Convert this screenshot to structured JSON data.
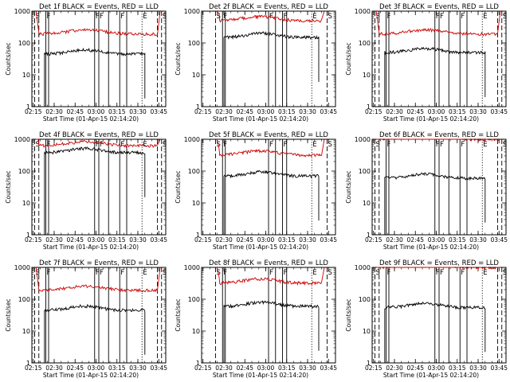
{
  "chart_data": [
    {
      "type": "line",
      "title": "Det 1f BLACK = Events, RED = LLD",
      "xlabel": "Start Time (01-Apr-15 02:14:20)",
      "ylabel": "Counts/sec",
      "x_ticks": [
        "02:15",
        "02:30",
        "02:45",
        "03:00",
        "03:15",
        "03:30",
        "03:45"
      ],
      "y_ticks": [
        "1",
        "10",
        "100",
        "1000"
      ],
      "y_scale": "log",
      "ylim": [
        1,
        1000
      ],
      "markers": [
        {
          "t": "02:16",
          "style": "dash",
          "label": "S"
        },
        {
          "t": "02:19",
          "style": "dash",
          "label": ""
        },
        {
          "t": "02:24",
          "style": "solid",
          "label": "F"
        },
        {
          "t": "02:26",
          "style": "solid",
          "label": ""
        },
        {
          "t": "02:59",
          "style": "solid",
          "label": "F"
        },
        {
          "t": "03:02",
          "style": "solid",
          "label": "F"
        },
        {
          "t": "03:09",
          "style": "solid",
          "label": ""
        },
        {
          "t": "03:17",
          "style": "solid",
          "label": "F"
        },
        {
          "t": "03:22",
          "style": "solid",
          "label": ""
        },
        {
          "t": "03:33",
          "style": "dot",
          "label": "E"
        },
        {
          "t": "03:44",
          "style": "dash",
          "label": ""
        },
        {
          "t": "03:47",
          "style": "dash",
          "label": "S"
        }
      ],
      "series": [
        {
          "name": "Events",
          "color": "#000000",
          "t_start": "02:23",
          "t_end": "03:35",
          "level": 45
        },
        {
          "name": "LLD",
          "color": "#cc0000",
          "t_start": "02:17",
          "t_end": "03:46",
          "level": 190
        }
      ]
    },
    {
      "type": "line",
      "title": "Det 2f BLACK = Events, RED = LLD",
      "xlabel": "Start Time (01-Apr-15 02:14:20)",
      "ylabel": "Counts/sec",
      "x_ticks": [
        "02:15",
        "02:30",
        "02:45",
        "03:00",
        "03:15",
        "03:30",
        "03:45"
      ],
      "y_ticks": [
        "1",
        "10",
        "100",
        "1000"
      ],
      "y_scale": "log",
      "ylim": [
        1,
        1000
      ],
      "markers": [
        {
          "t": "02:24",
          "style": "dash",
          "label": "S"
        },
        {
          "t": "02:29",
          "style": "solid",
          "label": "F"
        },
        {
          "t": "02:31",
          "style": "solid",
          "label": ""
        },
        {
          "t": "03:02",
          "style": "solid",
          "label": "F"
        },
        {
          "t": "03:07",
          "style": "solid",
          "label": ""
        },
        {
          "t": "03:12",
          "style": "solid",
          "label": "F"
        },
        {
          "t": "03:15",
          "style": "solid",
          "label": ""
        },
        {
          "t": "03:33",
          "style": "dot",
          "label": "E"
        },
        {
          "t": "03:44",
          "style": "dash",
          "label": "S"
        }
      ],
      "series": [
        {
          "name": "Events",
          "color": "#000000",
          "t_start": "02:30",
          "t_end": "03:38",
          "level": 150
        },
        {
          "name": "LLD",
          "color": "#cc0000",
          "t_start": "02:25",
          "t_end": "03:42",
          "level": 500
        }
      ]
    },
    {
      "type": "line",
      "title": "Det 3f BLACK = Events, RED = LLD",
      "xlabel": "Start Time (01-Apr-15 02:14:20)",
      "ylabel": "Counts/sec",
      "x_ticks": [
        "02:15",
        "02:30",
        "02:45",
        "03:00",
        "03:15",
        "03:30",
        "03:45"
      ],
      "y_ticks": [
        "1",
        "10",
        "100",
        "1000"
      ],
      "y_scale": "log",
      "ylim": [
        1,
        1000
      ],
      "markers": [
        {
          "t": "02:16",
          "style": "dash",
          "label": "S"
        },
        {
          "t": "02:19",
          "style": "dash",
          "label": ""
        },
        {
          "t": "02:24",
          "style": "solid",
          "label": "F"
        },
        {
          "t": "02:26",
          "style": "solid",
          "label": ""
        },
        {
          "t": "02:59",
          "style": "solid",
          "label": "F"
        },
        {
          "t": "03:02",
          "style": "solid",
          "label": "F"
        },
        {
          "t": "03:09",
          "style": "solid",
          "label": ""
        },
        {
          "t": "03:17",
          "style": "solid",
          "label": "F"
        },
        {
          "t": "03:22",
          "style": "solid",
          "label": ""
        },
        {
          "t": "03:33",
          "style": "dot",
          "label": "E"
        },
        {
          "t": "03:44",
          "style": "dash",
          "label": ""
        },
        {
          "t": "03:47",
          "style": "dash",
          "label": "S"
        }
      ],
      "series": [
        {
          "name": "Events",
          "color": "#000000",
          "t_start": "02:23",
          "t_end": "03:35",
          "level": 50
        },
        {
          "name": "LLD",
          "color": "#cc0000",
          "t_start": "02:17",
          "t_end": "03:46",
          "level": 190
        }
      ]
    },
    {
      "type": "line",
      "title": "Det 4f BLACK = Events, RED = LLD",
      "xlabel": "Start Time (01-Apr-15 02:14:20)",
      "ylabel": "Counts/sec",
      "x_ticks": [
        "02:15",
        "02:30",
        "02:45",
        "03:00",
        "03:15",
        "03:30",
        "03:45"
      ],
      "y_ticks": [
        "1",
        "10",
        "100",
        "1000"
      ],
      "y_scale": "log",
      "ylim": [
        1,
        1000
      ],
      "markers": [
        {
          "t": "02:16",
          "style": "dash",
          "label": "S"
        },
        {
          "t": "02:19",
          "style": "dash",
          "label": ""
        },
        {
          "t": "02:24",
          "style": "solid",
          "label": "F"
        },
        {
          "t": "02:26",
          "style": "solid",
          "label": ""
        },
        {
          "t": "02:59",
          "style": "solid",
          "label": "F"
        },
        {
          "t": "03:02",
          "style": "solid",
          "label": "F"
        },
        {
          "t": "03:09",
          "style": "solid",
          "label": ""
        },
        {
          "t": "03:17",
          "style": "solid",
          "label": "F"
        },
        {
          "t": "03:22",
          "style": "solid",
          "label": ""
        },
        {
          "t": "03:33",
          "style": "dot",
          "label": "E"
        },
        {
          "t": "03:44",
          "style": "dash",
          "label": ""
        },
        {
          "t": "03:47",
          "style": "dash",
          "label": "S"
        }
      ],
      "series": [
        {
          "name": "Events",
          "color": "#000000",
          "t_start": "02:23",
          "t_end": "03:35",
          "level": 380
        },
        {
          "name": "LLD",
          "color": "#cc0000",
          "t_start": "02:17",
          "t_end": "03:46",
          "level": 620
        }
      ]
    },
    {
      "type": "line",
      "title": "Det 5f BLACK = Events, RED = LLD",
      "xlabel": "Start Time (01-Apr-15 02:14:20)",
      "ylabel": "Counts/sec",
      "x_ticks": [
        "02:15",
        "02:30",
        "02:45",
        "03:00",
        "03:15",
        "03:30",
        "03:45"
      ],
      "y_ticks": [
        "1",
        "10",
        "100",
        "1000"
      ],
      "y_scale": "log",
      "ylim": [
        1,
        1000
      ],
      "markers": [
        {
          "t": "02:24",
          "style": "dash",
          "label": "S"
        },
        {
          "t": "02:29",
          "style": "solid",
          "label": "F"
        },
        {
          "t": "02:31",
          "style": "solid",
          "label": ""
        },
        {
          "t": "03:02",
          "style": "solid",
          "label": "F"
        },
        {
          "t": "03:07",
          "style": "solid",
          "label": ""
        },
        {
          "t": "03:12",
          "style": "solid",
          "label": "F"
        },
        {
          "t": "03:15",
          "style": "solid",
          "label": ""
        },
        {
          "t": "03:33",
          "style": "dot",
          "label": "E"
        },
        {
          "t": "03:44",
          "style": "dash",
          "label": "S"
        }
      ],
      "series": [
        {
          "name": "Events",
          "color": "#000000",
          "t_start": "02:30",
          "t_end": "03:38",
          "level": 70
        },
        {
          "name": "LLD",
          "color": "#cc0000",
          "t_start": "02:25",
          "t_end": "03:42",
          "level": 320
        }
      ]
    },
    {
      "type": "line",
      "title": "Det 6f BLACK = Events, RED = LLD",
      "xlabel": "Start Time (01-Apr-15 02:14:20)",
      "ylabel": "Counts/sec",
      "x_ticks": [
        "02:15",
        "02:30",
        "02:45",
        "03:00",
        "03:15",
        "03:30",
        "03:45"
      ],
      "y_ticks": [
        "1",
        "10",
        "100",
        "1000"
      ],
      "y_scale": "log",
      "ylim": [
        1,
        1000
      ],
      "markers": [
        {
          "t": "02:16",
          "style": "dash",
          "label": "S"
        },
        {
          "t": "02:19",
          "style": "dash",
          "label": ""
        },
        {
          "t": "02:24",
          "style": "solid",
          "label": "F"
        },
        {
          "t": "02:26",
          "style": "solid",
          "label": ""
        },
        {
          "t": "02:59",
          "style": "solid",
          "label": "F"
        },
        {
          "t": "03:02",
          "style": "solid",
          "label": "F"
        },
        {
          "t": "03:09",
          "style": "solid",
          "label": ""
        },
        {
          "t": "03:17",
          "style": "solid",
          "label": "F"
        },
        {
          "t": "03:22",
          "style": "solid",
          "label": ""
        },
        {
          "t": "03:33",
          "style": "dot",
          "label": "E"
        },
        {
          "t": "03:44",
          "style": "dash",
          "label": ""
        },
        {
          "t": "03:47",
          "style": "dash",
          "label": "S"
        }
      ],
      "series": [
        {
          "name": "Events",
          "color": "#000000",
          "t_start": "02:23",
          "t_end": "03:35",
          "level": 60
        },
        {
          "name": "LLD",
          "color": "#cc0000",
          "t_start": "02:17",
          "t_end": "03:46",
          "level": 1000
        }
      ]
    },
    {
      "type": "line",
      "title": "Det 7f BLACK = Events, RED = LLD",
      "xlabel": "Start Time (01-Apr-15 02:14:20)",
      "ylabel": "Counts/sec",
      "x_ticks": [
        "02:15",
        "02:30",
        "02:45",
        "03:00",
        "03:15",
        "03:30",
        "03:45"
      ],
      "y_ticks": [
        "1",
        "10",
        "100",
        "1000"
      ],
      "y_scale": "log",
      "ylim": [
        1,
        1000
      ],
      "markers": [
        {
          "t": "02:16",
          "style": "dash",
          "label": "S"
        },
        {
          "t": "02:19",
          "style": "dash",
          "label": ""
        },
        {
          "t": "02:24",
          "style": "solid",
          "label": "F"
        },
        {
          "t": "02:26",
          "style": "solid",
          "label": ""
        },
        {
          "t": "02:59",
          "style": "solid",
          "label": "F"
        },
        {
          "t": "03:02",
          "style": "solid",
          "label": "F"
        },
        {
          "t": "03:09",
          "style": "solid",
          "label": ""
        },
        {
          "t": "03:17",
          "style": "solid",
          "label": "F"
        },
        {
          "t": "03:22",
          "style": "solid",
          "label": ""
        },
        {
          "t": "03:33",
          "style": "dot",
          "label": "E"
        },
        {
          "t": "03:44",
          "style": "dash",
          "label": ""
        },
        {
          "t": "03:47",
          "style": "dash",
          "label": "S"
        }
      ],
      "series": [
        {
          "name": "Events",
          "color": "#000000",
          "t_start": "02:23",
          "t_end": "03:35",
          "level": 45
        },
        {
          "name": "LLD",
          "color": "#cc0000",
          "t_start": "02:17",
          "t_end": "03:46",
          "level": 190
        }
      ]
    },
    {
      "type": "line",
      "title": "Det 8f BLACK = Events, RED = LLD",
      "xlabel": "Start Time (01-Apr-15 02:14:20)",
      "ylabel": "Counts/sec",
      "x_ticks": [
        "02:15",
        "02:30",
        "02:45",
        "03:00",
        "03:15",
        "03:30",
        "03:45"
      ],
      "y_ticks": [
        "1",
        "10",
        "100",
        "1000"
      ],
      "y_scale": "log",
      "ylim": [
        1,
        1000
      ],
      "markers": [
        {
          "t": "02:24",
          "style": "dash",
          "label": "S"
        },
        {
          "t": "02:29",
          "style": "solid",
          "label": "F"
        },
        {
          "t": "02:31",
          "style": "solid",
          "label": ""
        },
        {
          "t": "03:02",
          "style": "solid",
          "label": "F"
        },
        {
          "t": "03:07",
          "style": "solid",
          "label": ""
        },
        {
          "t": "03:12",
          "style": "solid",
          "label": "F"
        },
        {
          "t": "03:15",
          "style": "solid",
          "label": ""
        },
        {
          "t": "03:33",
          "style": "dot",
          "label": "E"
        },
        {
          "t": "03:44",
          "style": "dash",
          "label": "S"
        }
      ],
      "series": [
        {
          "name": "Events",
          "color": "#000000",
          "t_start": "02:30",
          "t_end": "03:38",
          "level": 60
        },
        {
          "name": "LLD",
          "color": "#cc0000",
          "t_start": "02:25",
          "t_end": "03:42",
          "level": 320
        }
      ]
    },
    {
      "type": "line",
      "title": "Det 9f BLACK = Events, RED = LLD",
      "xlabel": "Start Time (01-Apr-15 02:14:20)",
      "ylabel": "Counts/sec",
      "x_ticks": [
        "02:15",
        "02:30",
        "02:45",
        "03:00",
        "03:15",
        "03:30",
        "03:45"
      ],
      "y_ticks": [
        "1",
        "10",
        "100",
        "1000"
      ],
      "y_scale": "log",
      "ylim": [
        1,
        1000
      ],
      "markers": [
        {
          "t": "02:16",
          "style": "dash",
          "label": "S"
        },
        {
          "t": "02:19",
          "style": "dash",
          "label": ""
        },
        {
          "t": "02:24",
          "style": "solid",
          "label": "F"
        },
        {
          "t": "02:26",
          "style": "solid",
          "label": ""
        },
        {
          "t": "02:59",
          "style": "solid",
          "label": "F"
        },
        {
          "t": "03:02",
          "style": "solid",
          "label": "F"
        },
        {
          "t": "03:09",
          "style": "solid",
          "label": ""
        },
        {
          "t": "03:17",
          "style": "solid",
          "label": "F"
        },
        {
          "t": "03:22",
          "style": "solid",
          "label": ""
        },
        {
          "t": "03:33",
          "style": "dot",
          "label": "E"
        },
        {
          "t": "03:44",
          "style": "dash",
          "label": ""
        },
        {
          "t": "03:47",
          "style": "dash",
          "label": "S"
        }
      ],
      "series": [
        {
          "name": "Events",
          "color": "#000000",
          "t_start": "02:23",
          "t_end": "03:35",
          "level": 55
        },
        {
          "name": "LLD",
          "color": "#cc0000",
          "t_start": "02:17",
          "t_end": "03:46",
          "level": 1000
        }
      ]
    }
  ]
}
